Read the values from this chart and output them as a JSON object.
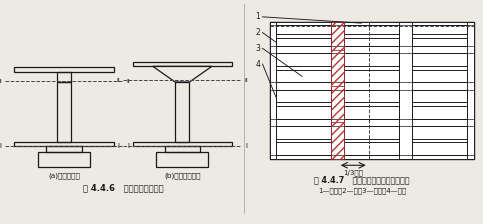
{
  "bg_color": "#ede9e3",
  "line_color": "#1a1a1a",
  "dash_color": "#444444",
  "hatch_color": "#bb3333",
  "fig446_title": "图 4.4.6   柱子的施工缝位置",
  "fig447_title": "图 4.4.7   有主次梁楼盖的施工缝位置",
  "fig446_sub_a": "(a)梁板式结构",
  "fig446_sub_b": "(b)无梁楼盖结构",
  "fig447_legend": "1—模板；2—柱；3—次梁；4—主梁",
  "span_label": "1/3梁跨"
}
